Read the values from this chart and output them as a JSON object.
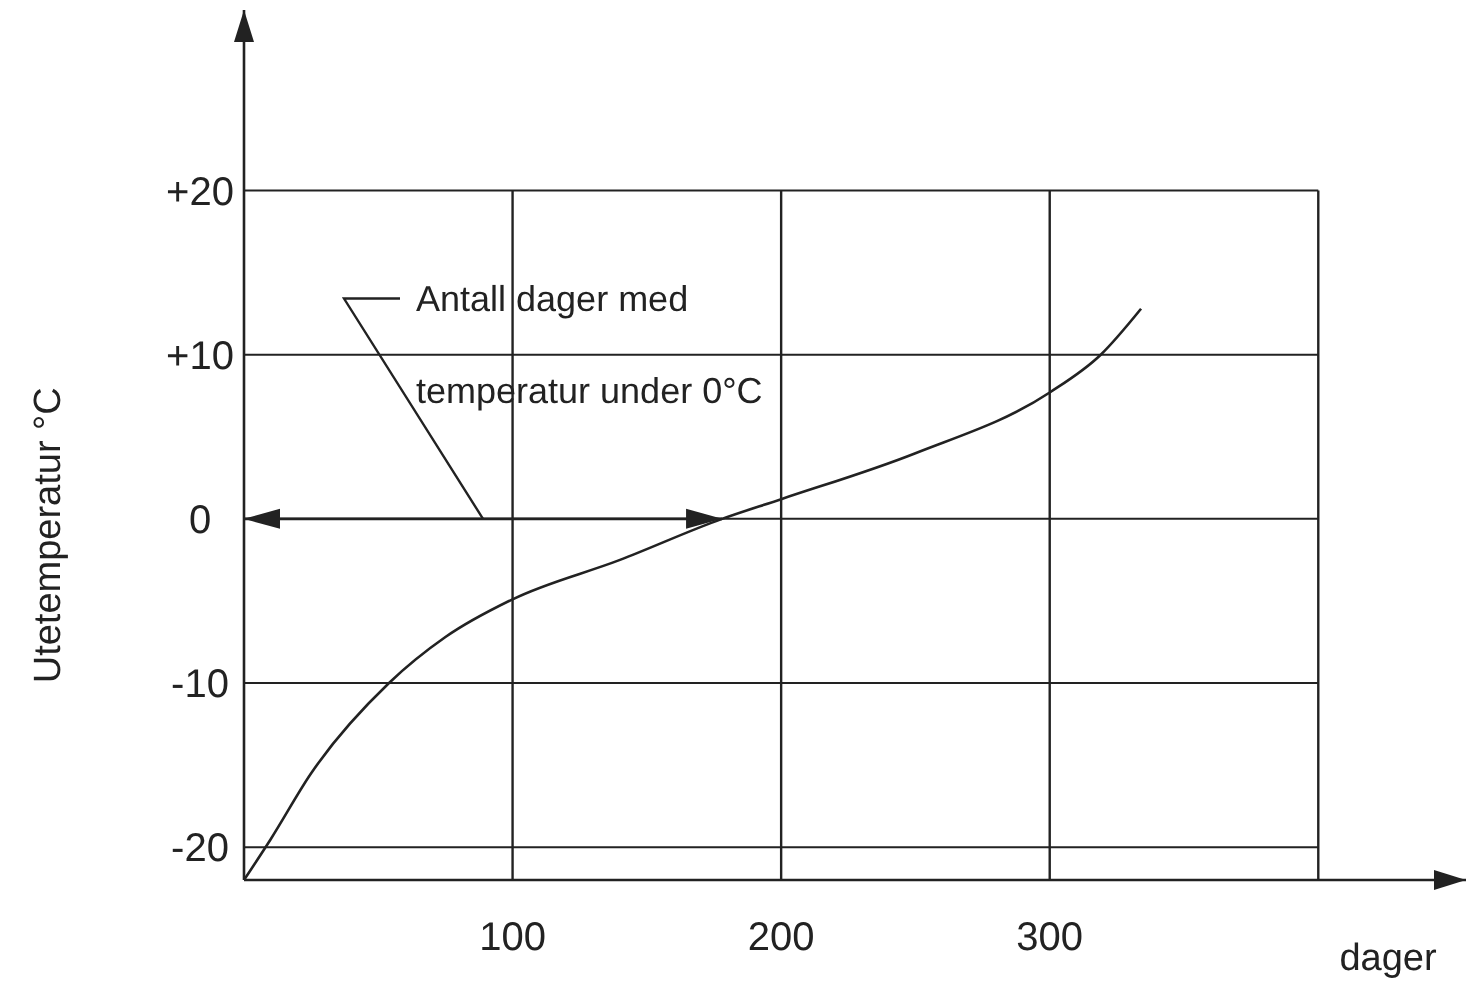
{
  "chart_data": {
    "type": "line",
    "xlabel": "dager",
    "ylabel": "Utetemperatur °C",
    "x": [
      0,
      10,
      25,
      54,
      75,
      100,
      140,
      178,
      200,
      250,
      300,
      319,
      334
    ],
    "series": [
      {
        "color": "#222222",
        "values": [
          -22,
          -19.5,
          -15.5,
          -10,
          -7.2,
          -4.9,
          -2.5,
          0,
          1.2,
          4,
          7.7,
          10,
          12.8
        ]
      }
    ],
    "xlim": [
      0,
      455
    ],
    "xticks": [
      100,
      200,
      300,
      {
        "value": 400,
        "label": null
      }
    ],
    "ylim": [
      -22,
      31
    ],
    "yticks": [
      {
        "value": 20,
        "label": "+20"
      },
      {
        "value": 10,
        "label": "+10"
      },
      0,
      {
        "value": -10,
        "label": "-10"
      },
      {
        "value": -20,
        "label": "-20"
      }
    ],
    "grid": true,
    "marker": "none",
    "line_style": "solid",
    "annotations": [
      "Antall dager med\ntemperatur under 0°C"
    ]
  }
}
